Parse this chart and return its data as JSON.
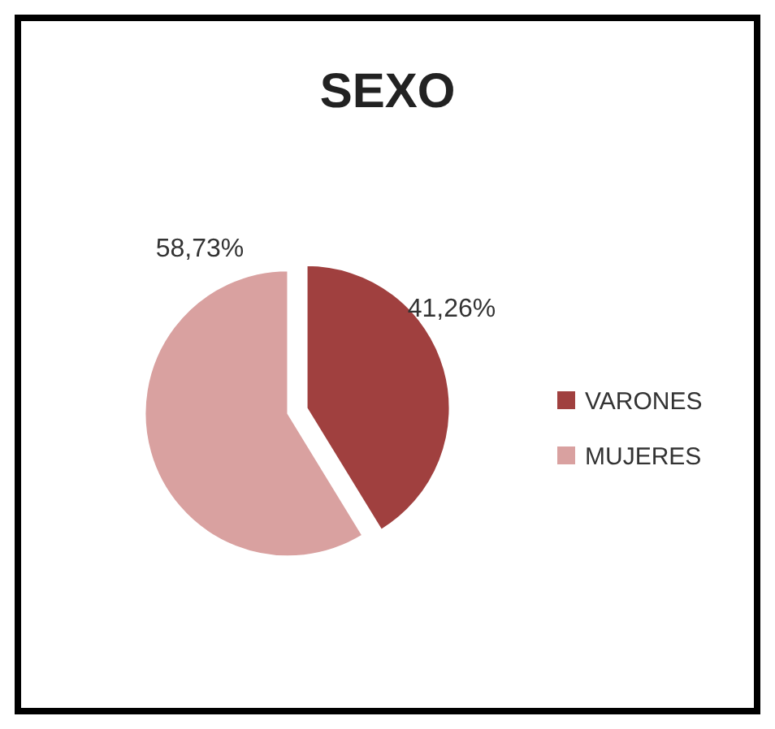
{
  "chart_data": {
    "type": "pie",
    "title": "SEXO",
    "categories": [
      "VARONES",
      "MUJERES"
    ],
    "values": [
      41.26,
      58.73
    ],
    "colors": [
      "#a0403f",
      "#d9a1a0"
    ],
    "value_labels": [
      "41,26%",
      "58,73%"
    ],
    "legend": "right"
  }
}
